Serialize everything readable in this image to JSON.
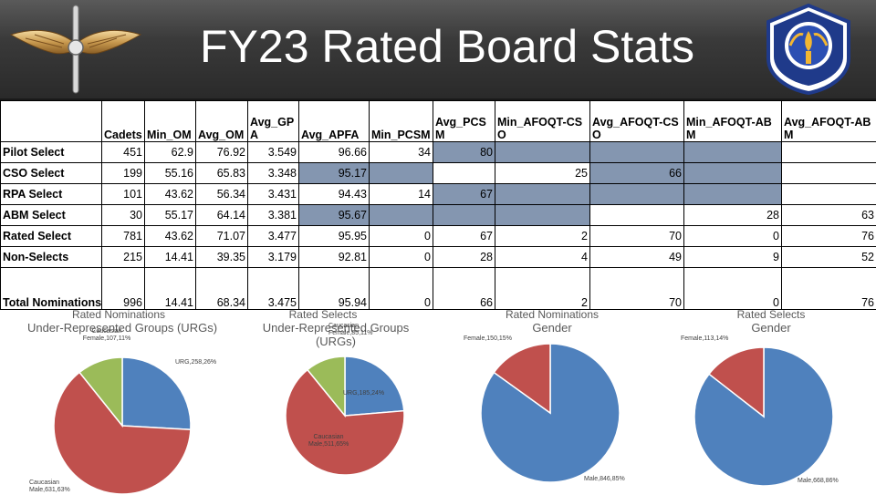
{
  "header": {
    "title": "FY23 Rated Board Stats"
  },
  "table": {
    "columns": [
      "",
      "Cadets",
      "Min_OM",
      "Avg_OM",
      "Avg_GPA",
      "Avg_APFA",
      "Min_PCSM",
      "Avg_PCSM",
      "Min_AFOQT-CSO",
      "Avg_AFOQT-CSO",
      "Min_AFOQT-ABM",
      "Avg_AFOQT-ABM"
    ],
    "rows": [
      {
        "label": "Pilot Select",
        "cells": [
          "451",
          "62.9",
          "76.92",
          "3.549",
          "96.66",
          "34",
          "80",
          "",
          "",
          "",
          ""
        ]
      },
      {
        "label": "CSO Select",
        "cells": [
          "199",
          "55.16",
          "65.83",
          "3.348",
          "95.17",
          "",
          "",
          "25",
          "66",
          "",
          ""
        ]
      },
      {
        "label": "RPA Select",
        "cells": [
          "101",
          "43.62",
          "56.34",
          "3.431",
          "94.43",
          "14",
          "67",
          "",
          "",
          "",
          ""
        ]
      },
      {
        "label": "ABM Select",
        "cells": [
          "30",
          "55.17",
          "64.14",
          "3.381",
          "95.67",
          "",
          "",
          "",
          "",
          "28",
          "63"
        ]
      },
      {
        "label": "Rated Select",
        "cells": [
          "781",
          "43.62",
          "71.07",
          "3.477",
          "95.95",
          "0",
          "67",
          "2",
          "70",
          "0",
          "76"
        ]
      },
      {
        "label": "Non-Selects",
        "cells": [
          "215",
          "14.41",
          "39.35",
          "3.179",
          "92.81",
          "0",
          "28",
          "4",
          "49",
          "9",
          "52"
        ]
      },
      {
        "label": "Total Nominations",
        "cells": [
          "996",
          "14.41",
          "68.34",
          "3.475",
          "95.94",
          "0",
          "66",
          "2",
          "70",
          "0",
          "76"
        ]
      }
    ],
    "shaded": [
      [
        0,
        7
      ],
      [
        0,
        8
      ],
      [
        0,
        9
      ],
      [
        0,
        10
      ],
      [
        1,
        5
      ],
      [
        1,
        6
      ],
      [
        1,
        9
      ],
      [
        1,
        10
      ],
      [
        2,
        7
      ],
      [
        2,
        8
      ],
      [
        2,
        9
      ],
      [
        2,
        10
      ],
      [
        3,
        5
      ],
      [
        3,
        6
      ],
      [
        3,
        7
      ],
      [
        3,
        8
      ]
    ]
  },
  "colors": {
    "blue": "#4f81bd",
    "red": "#c0504d",
    "green": "#9bbb59",
    "shade": "#8496b0"
  },
  "chart_data": [
    {
      "type": "pie",
      "title": "Rated Nominations",
      "subtitle": "Under-Represented Groups (URGs)",
      "slices": [
        {
          "label": "URG,258,26%",
          "value": 258,
          "color": "#4f81bd"
        },
        {
          "label": "Caucasian Male,631,63%",
          "value": 631,
          "color": "#c0504d"
        },
        {
          "label": "Caucasian Female,107,11%",
          "value": 107,
          "color": "#9bbb59"
        }
      ]
    },
    {
      "type": "pie",
      "title": "Rated Selects",
      "subtitle": "Under-Represented Groups (URGs)",
      "slices": [
        {
          "label": "URG,185,24%",
          "value": 185,
          "color": "#4f81bd"
        },
        {
          "label": "Caucasian Male,511,65%",
          "value": 511,
          "color": "#c0504d"
        },
        {
          "label": "Caucasian Female,85,11%",
          "value": 85,
          "color": "#9bbb59"
        }
      ]
    },
    {
      "type": "pie",
      "title": "Rated Nominations",
      "subtitle": "Gender",
      "slices": [
        {
          "label": "Male,846,85%",
          "value": 846,
          "color": "#4f81bd"
        },
        {
          "label": "Female,150,15%",
          "value": 150,
          "color": "#c0504d"
        }
      ]
    },
    {
      "type": "pie",
      "title": "Rated Selects",
      "subtitle": "Gender",
      "slices": [
        {
          "label": "Male,668,86%",
          "value": 668,
          "color": "#4f81bd"
        },
        {
          "label": "Female,113,14%",
          "value": 113,
          "color": "#c0504d"
        }
      ]
    }
  ]
}
